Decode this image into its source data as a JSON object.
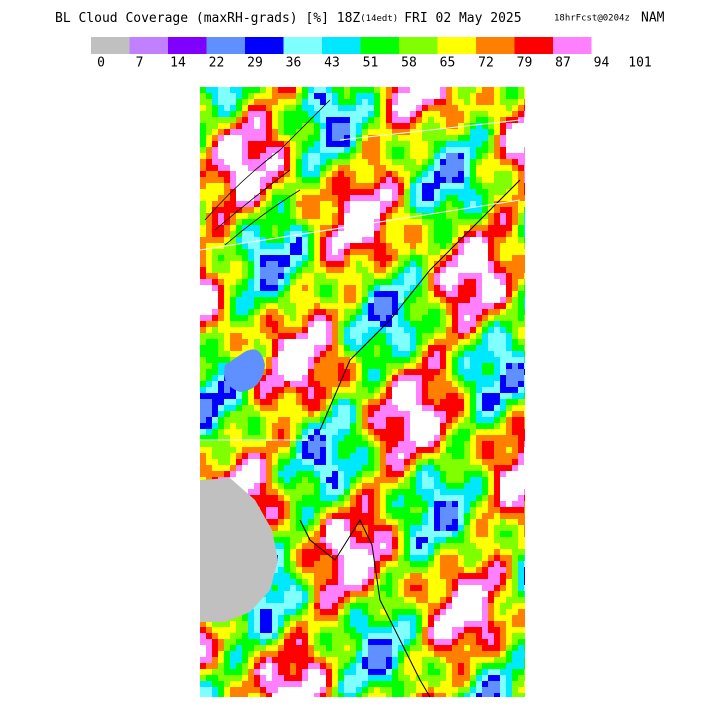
{
  "header": {
    "title": "BL Cloud Coverage (maxRH-grads) [%] 18Z",
    "title_small": "(14edt)",
    "title_rest": "FRI 02 May 2025",
    "forecast": "18hrFcst@0204z",
    "model": "NAM"
  },
  "legend": {
    "colors": [
      "#c0c0c0",
      "#c080ff",
      "#8000ff",
      "#6090ff",
      "#0000ff",
      "#80ffff",
      "#00e8ff",
      "#00ff00",
      "#80ff00",
      "#ffff00",
      "#ff8000",
      "#ff0000",
      "#ff80ff",
      "#ffffff"
    ],
    "labels": [
      0,
      7,
      14,
      22,
      29,
      36,
      43,
      51,
      58,
      65,
      72,
      79,
      87,
      94,
      101
    ]
  }
}
